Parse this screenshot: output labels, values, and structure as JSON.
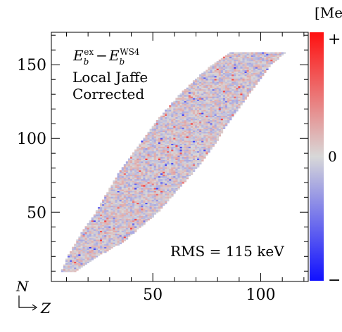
{
  "chart_data": {
    "type": "heatmap",
    "title": "",
    "x_axis": {
      "variable": "Z",
      "range": [
        3,
        122
      ],
      "major_ticks": [
        50,
        100
      ]
    },
    "y_axis": {
      "variable": "N",
      "range": [
        3,
        172
      ],
      "major_ticks": [
        50,
        100,
        150
      ]
    },
    "colorbar": {
      "unit_label": "[Me",
      "top_label": "+",
      "mid_label": "0",
      "bottom_label": "−",
      "top_color": "#ff1010",
      "mid_color": "#d8d8d8",
      "bottom_color": "#1010ff"
    },
    "annotation": {
      "quantity_main": "E",
      "quantity_sub": "b",
      "quantity_sup": "ex",
      "operator": "−",
      "reference_main": "E",
      "reference_sub": "b",
      "reference_sup": "WS4",
      "line2": "Local Jaffe",
      "line3": "Corrected"
    },
    "rms_label": "RMS = 115 keV",
    "band": {
      "description_points": [
        {
          "N": 10,
          "Z_low": 8,
          "Z_high": 14
        },
        {
          "N": 20,
          "Z_low": 11,
          "Z_high": 24
        },
        {
          "N": 30,
          "Z_low": 15,
          "Z_high": 36
        },
        {
          "N": 40,
          "Z_low": 19,
          "Z_high": 44
        },
        {
          "N": 50,
          "Z_low": 24,
          "Z_high": 52
        },
        {
          "N": 60,
          "Z_low": 28,
          "Z_high": 58
        },
        {
          "N": 70,
          "Z_low": 32,
          "Z_high": 64
        },
        {
          "N": 80,
          "Z_low": 36,
          "Z_high": 70
        },
        {
          "N": 90,
          "Z_low": 41,
          "Z_high": 75
        },
        {
          "N": 100,
          "Z_low": 46,
          "Z_high": 80
        },
        {
          "N": 110,
          "Z_low": 51,
          "Z_high": 84
        },
        {
          "N": 120,
          "Z_low": 57,
          "Z_high": 89
        },
        {
          "N": 130,
          "Z_low": 63,
          "Z_high": 94
        },
        {
          "N": 140,
          "Z_low": 70,
          "Z_high": 99
        },
        {
          "N": 150,
          "Z_low": 78,
          "Z_high": 104
        },
        {
          "N": 158,
          "Z_low": 86,
          "Z_high": 111
        }
      ]
    }
  }
}
